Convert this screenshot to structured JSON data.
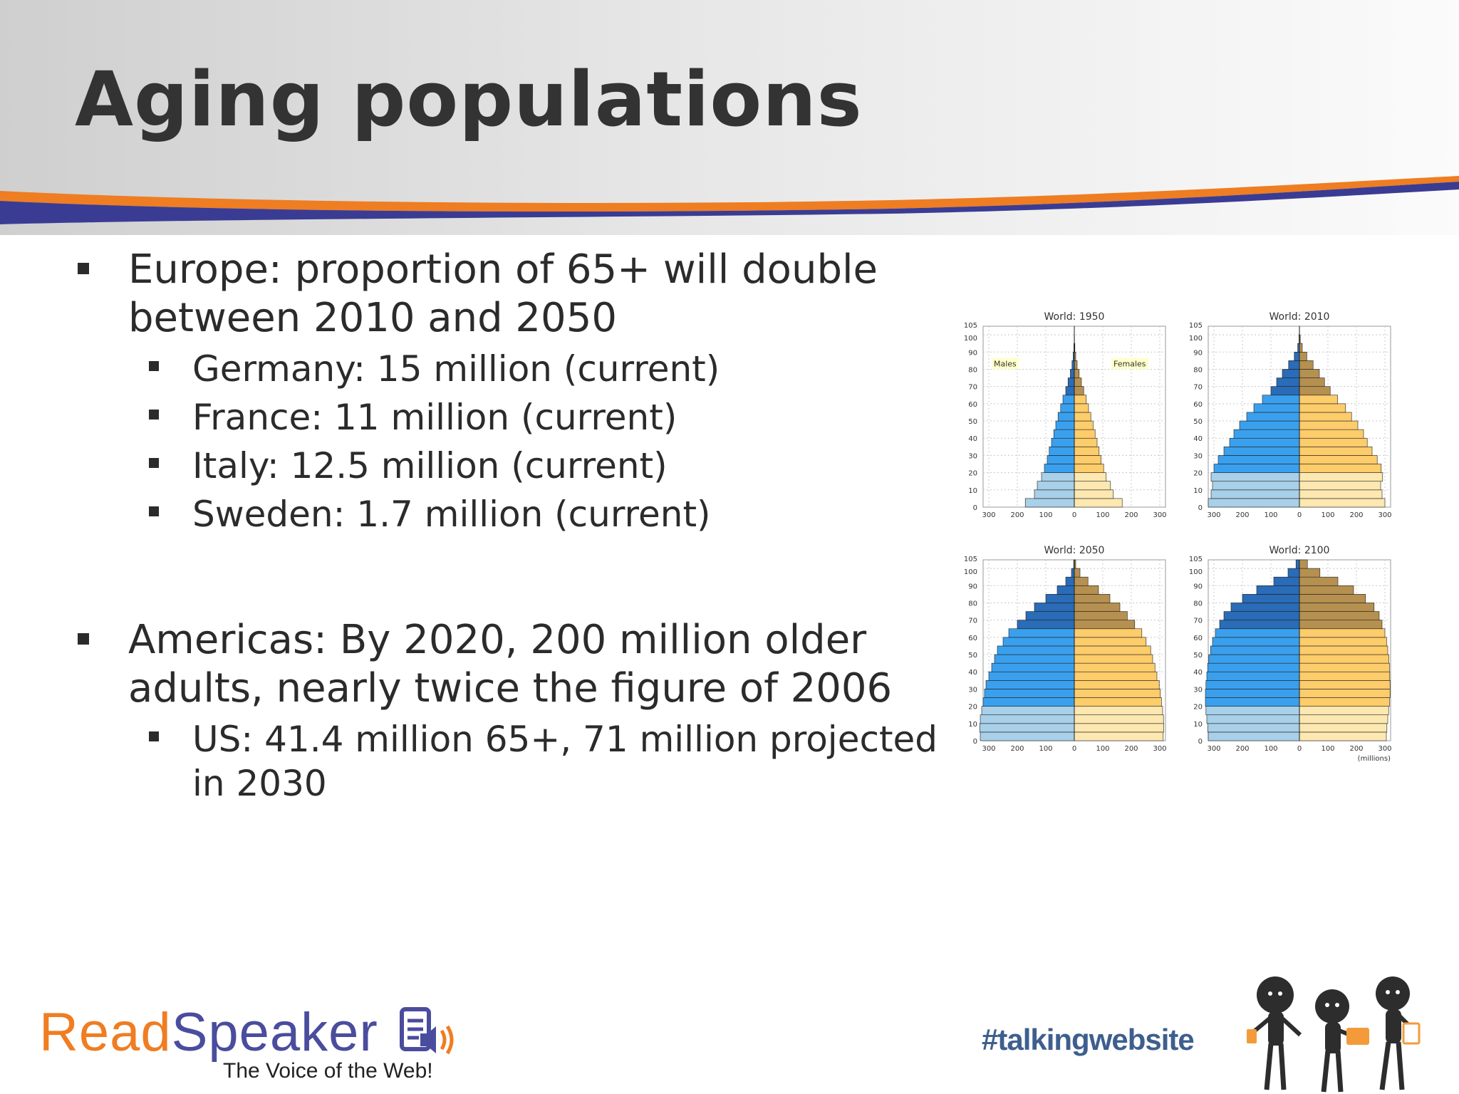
{
  "slide": {
    "title": "Aging populations",
    "bullets": [
      {
        "text": "Europe: proportion of 65+ will double between 2010 and 2050",
        "sub": [
          "Germany: 15 million (current)",
          "France: 11 million (current)",
          "Italy: 12.5 million (current)",
          "Sweden: 1.7 million (current)"
        ]
      },
      {
        "text": "Americas: By 2020, 200 million older adults, nearly twice the figure of 2006",
        "sub": [
          "US: 41.4 million 65+, 71 million projected in 2030"
        ]
      }
    ]
  },
  "footer": {
    "logo_read": "Read",
    "logo_speaker": "Speaker",
    "tagline": "The Voice of the Web!",
    "hashtag": "#talkingwebsite"
  },
  "colors": {
    "accent_orange": "#ef7d22",
    "accent_blue": "#3a3c93",
    "male_young": "#a8d0e8",
    "male_adult": "#3aa0ee",
    "male_old": "#2a6cb7",
    "female_young": "#fce8b0",
    "female_adult": "#fdcc6b",
    "female_old": "#b59050"
  },
  "chart_data": [
    {
      "type": "population-pyramid",
      "title": "World: 1950",
      "age_groups": [
        "0-4",
        "5-9",
        "10-14",
        "15-19",
        "20-24",
        "25-29",
        "30-34",
        "35-39",
        "40-44",
        "45-49",
        "50-54",
        "55-59",
        "60-64",
        "65-69",
        "70-74",
        "75-79",
        "80-84",
        "85-89",
        "90-94",
        "95-99",
        "100+"
      ],
      "series": [
        {
          "name": "Males",
          "values": [
            172,
            140,
            130,
            115,
            105,
            95,
            88,
            80,
            72,
            65,
            57,
            48,
            40,
            30,
            22,
            14,
            8,
            4,
            1.5,
            0.5,
            0.2
          ]
        },
        {
          "name": "Females",
          "values": [
            168,
            137,
            127,
            112,
            103,
            94,
            87,
            80,
            73,
            66,
            58,
            50,
            42,
            33,
            25,
            17,
            10,
            5,
            2,
            0.7,
            0.3
          ]
        }
      ],
      "labels": {
        "male": "Males",
        "female": "Females"
      },
      "x_ticks": [
        "300",
        "200",
        "100",
        "0",
        "100",
        "200",
        "300"
      ],
      "y_ticks": [
        "0",
        "10",
        "20",
        "30",
        "40",
        "50",
        "60",
        "70",
        "80",
        "90",
        "100",
        "105"
      ]
    },
    {
      "type": "population-pyramid",
      "title": "World: 2010",
      "age_groups": [
        "0-4",
        "5-9",
        "10-14",
        "15-19",
        "20-24",
        "25-29",
        "30-34",
        "35-39",
        "40-44",
        "45-49",
        "50-54",
        "55-59",
        "60-64",
        "65-69",
        "70-74",
        "75-79",
        "80-84",
        "85-89",
        "90-94",
        "95-99",
        "100+"
      ],
      "series": [
        {
          "name": "Males",
          "values": [
            320,
            310,
            305,
            310,
            300,
            285,
            265,
            245,
            230,
            210,
            185,
            160,
            130,
            100,
            80,
            60,
            38,
            18,
            6,
            1.5,
            0.3
          ]
        },
        {
          "name": "Females",
          "values": [
            300,
            290,
            285,
            292,
            287,
            273,
            255,
            238,
            225,
            205,
            183,
            162,
            134,
            108,
            88,
            70,
            48,
            26,
            10,
            3,
            0.6
          ]
        }
      ],
      "x_ticks": [
        "300",
        "200",
        "100",
        "0",
        "100",
        "200",
        "300"
      ],
      "y_ticks": [
        "0",
        "10",
        "20",
        "30",
        "40",
        "50",
        "60",
        "70",
        "80",
        "90",
        "100",
        "105"
      ]
    },
    {
      "type": "population-pyramid",
      "title": "World: 2050",
      "age_groups": [
        "0-4",
        "5-9",
        "10-14",
        "15-19",
        "20-24",
        "25-29",
        "30-34",
        "35-39",
        "40-44",
        "45-49",
        "50-54",
        "55-59",
        "60-64",
        "65-69",
        "70-74",
        "75-79",
        "80-84",
        "85-89",
        "90-94",
        "95-99",
        "100+"
      ],
      "series": [
        {
          "name": "Males",
          "values": [
            330,
            332,
            330,
            325,
            320,
            315,
            310,
            300,
            290,
            280,
            270,
            250,
            230,
            200,
            170,
            140,
            100,
            60,
            30,
            10,
            2
          ]
        },
        {
          "name": "Females",
          "values": [
            312,
            314,
            313,
            310,
            306,
            302,
            298,
            290,
            283,
            275,
            268,
            252,
            237,
            212,
            186,
            160,
            125,
            85,
            48,
            20,
            5
          ]
        }
      ],
      "x_ticks": [
        "300",
        "200",
        "100",
        "0",
        "100",
        "200",
        "300"
      ],
      "y_ticks": [
        "0",
        "10",
        "20",
        "30",
        "40",
        "50",
        "60",
        "70",
        "80",
        "90",
        "100",
        "105"
      ]
    },
    {
      "type": "population-pyramid",
      "title": "World: 2100",
      "age_groups": [
        "0-4",
        "5-9",
        "10-14",
        "15-19",
        "20-24",
        "25-29",
        "30-34",
        "35-39",
        "40-44",
        "45-49",
        "50-54",
        "55-59",
        "60-64",
        "65-69",
        "70-74",
        "75-79",
        "80-84",
        "85-89",
        "90-94",
        "95-99",
        "100+"
      ],
      "series": [
        {
          "name": "Males",
          "values": [
            320,
            322,
            325,
            328,
            330,
            330,
            328,
            325,
            322,
            318,
            312,
            305,
            295,
            280,
            265,
            240,
            200,
            150,
            90,
            40,
            12
          ]
        },
        {
          "name": "Females",
          "values": [
            305,
            307,
            310,
            313,
            316,
            318,
            318,
            317,
            316,
            314,
            310,
            306,
            300,
            290,
            280,
            262,
            232,
            190,
            135,
            72,
            28
          ]
        }
      ],
      "x_ticks": [
        "300",
        "200",
        "100",
        "0",
        "100",
        "200",
        "300"
      ],
      "x_unit": "(millions)",
      "y_ticks": [
        "0",
        "10",
        "20",
        "30",
        "40",
        "50",
        "60",
        "70",
        "80",
        "90",
        "100",
        "105"
      ]
    }
  ]
}
